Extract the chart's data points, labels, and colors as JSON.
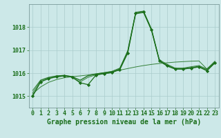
{
  "background_color": "#cce8e8",
  "grid_color": "#aacccc",
  "line_color": "#1a6e1a",
  "text_color": "#1a6e1a",
  "xlabel": "Graphe pression niveau de la mer (hPa)",
  "xlabel_fontsize": 7,
  "tick_fontsize": 6,
  "ytick_labels": [
    1015,
    1016,
    1017,
    1018
  ],
  "ylim": [
    1014.5,
    1019.0
  ],
  "xlim": [
    -0.5,
    23.5
  ],
  "series1": [
    1015.15,
    1015.68,
    1015.8,
    1015.88,
    1015.9,
    1015.85,
    1015.68,
    1015.88,
    1015.95,
    1016.0,
    1016.05,
    1016.2,
    1016.95,
    1018.62,
    1018.68,
    1017.9,
    1016.55,
    1016.35,
    1016.2,
    1016.2,
    1016.25,
    1016.3,
    1016.15,
    1016.48
  ],
  "series2": [
    1015.25,
    1015.7,
    1015.82,
    1015.88,
    1015.91,
    1015.85,
    1015.7,
    1015.9,
    1015.97,
    1016.02,
    1016.08,
    1016.22,
    1016.98,
    1018.65,
    1018.7,
    1017.93,
    1016.58,
    1016.38,
    1016.22,
    1016.22,
    1016.28,
    1016.33,
    1016.18,
    1016.52
  ],
  "series3": [
    1015.05,
    1015.63,
    1015.77,
    1015.84,
    1015.88,
    1015.82,
    1015.62,
    1015.82,
    1015.93,
    1015.97,
    1016.02,
    1016.17,
    1016.9,
    1018.58,
    1018.63,
    1017.85,
    1016.52,
    1016.3,
    1016.17,
    1016.17,
    1016.22,
    1016.27,
    1016.12,
    1016.43
  ],
  "main_series": [
    1015.0,
    1015.62,
    1015.76,
    1015.84,
    1015.88,
    1015.82,
    1015.58,
    1015.5,
    1015.92,
    1015.98,
    1016.03,
    1016.15,
    1016.87,
    1018.6,
    1018.66,
    1017.88,
    1016.53,
    1016.32,
    1016.18,
    1016.18,
    1016.22,
    1016.27,
    1016.1,
    1016.45
  ],
  "flat_series": [
    1015.1,
    1015.4,
    1015.6,
    1015.72,
    1015.8,
    1015.85,
    1015.88,
    1015.92,
    1015.97,
    1016.02,
    1016.07,
    1016.13,
    1016.2,
    1016.27,
    1016.33,
    1016.38,
    1016.42,
    1016.45,
    1016.48,
    1016.5,
    1016.52,
    1016.53,
    1016.18,
    1016.48
  ],
  "xtick_labels": [
    "0",
    "1",
    "2",
    "3",
    "4",
    "5",
    "6",
    "7",
    "8",
    "9",
    "10",
    "11",
    "12",
    "13",
    "14",
    "15",
    "16",
    "17",
    "18",
    "19",
    "20",
    "21",
    "22",
    "23"
  ]
}
